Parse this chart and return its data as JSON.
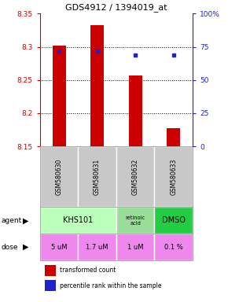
{
  "title": "GDS4912 / 1394019_at",
  "samples": [
    "GSM580630",
    "GSM580631",
    "GSM580632",
    "GSM580633"
  ],
  "bar_values": [
    8.302,
    8.332,
    8.257,
    8.178
  ],
  "bar_base": 8.15,
  "blue_values": [
    72,
    72,
    69,
    69
  ],
  "ylim": [
    8.15,
    8.35
  ],
  "yticks": [
    8.15,
    8.2,
    8.25,
    8.3,
    8.35
  ],
  "y2ticks": [
    0,
    25,
    50,
    75,
    100
  ],
  "y2labels": [
    "0",
    "25",
    "50",
    "75",
    "100%"
  ],
  "bar_color": "#cc0000",
  "blue_color": "#2222cc",
  "agent_khs_color": "#bbffbb",
  "agent_ret_color": "#99dd99",
  "agent_dmso_color": "#22cc44",
  "dose_color": "#ee88ee",
  "sample_box_color": "#c8c8c8",
  "doses": [
    "5 uM",
    "1.7 uM",
    "1 uM",
    "0.1 %"
  ],
  "legend_red": "transformed count",
  "legend_blue": "percentile rank within the sample",
  "grid_ticks": [
    8.2,
    8.25,
    8.3
  ]
}
